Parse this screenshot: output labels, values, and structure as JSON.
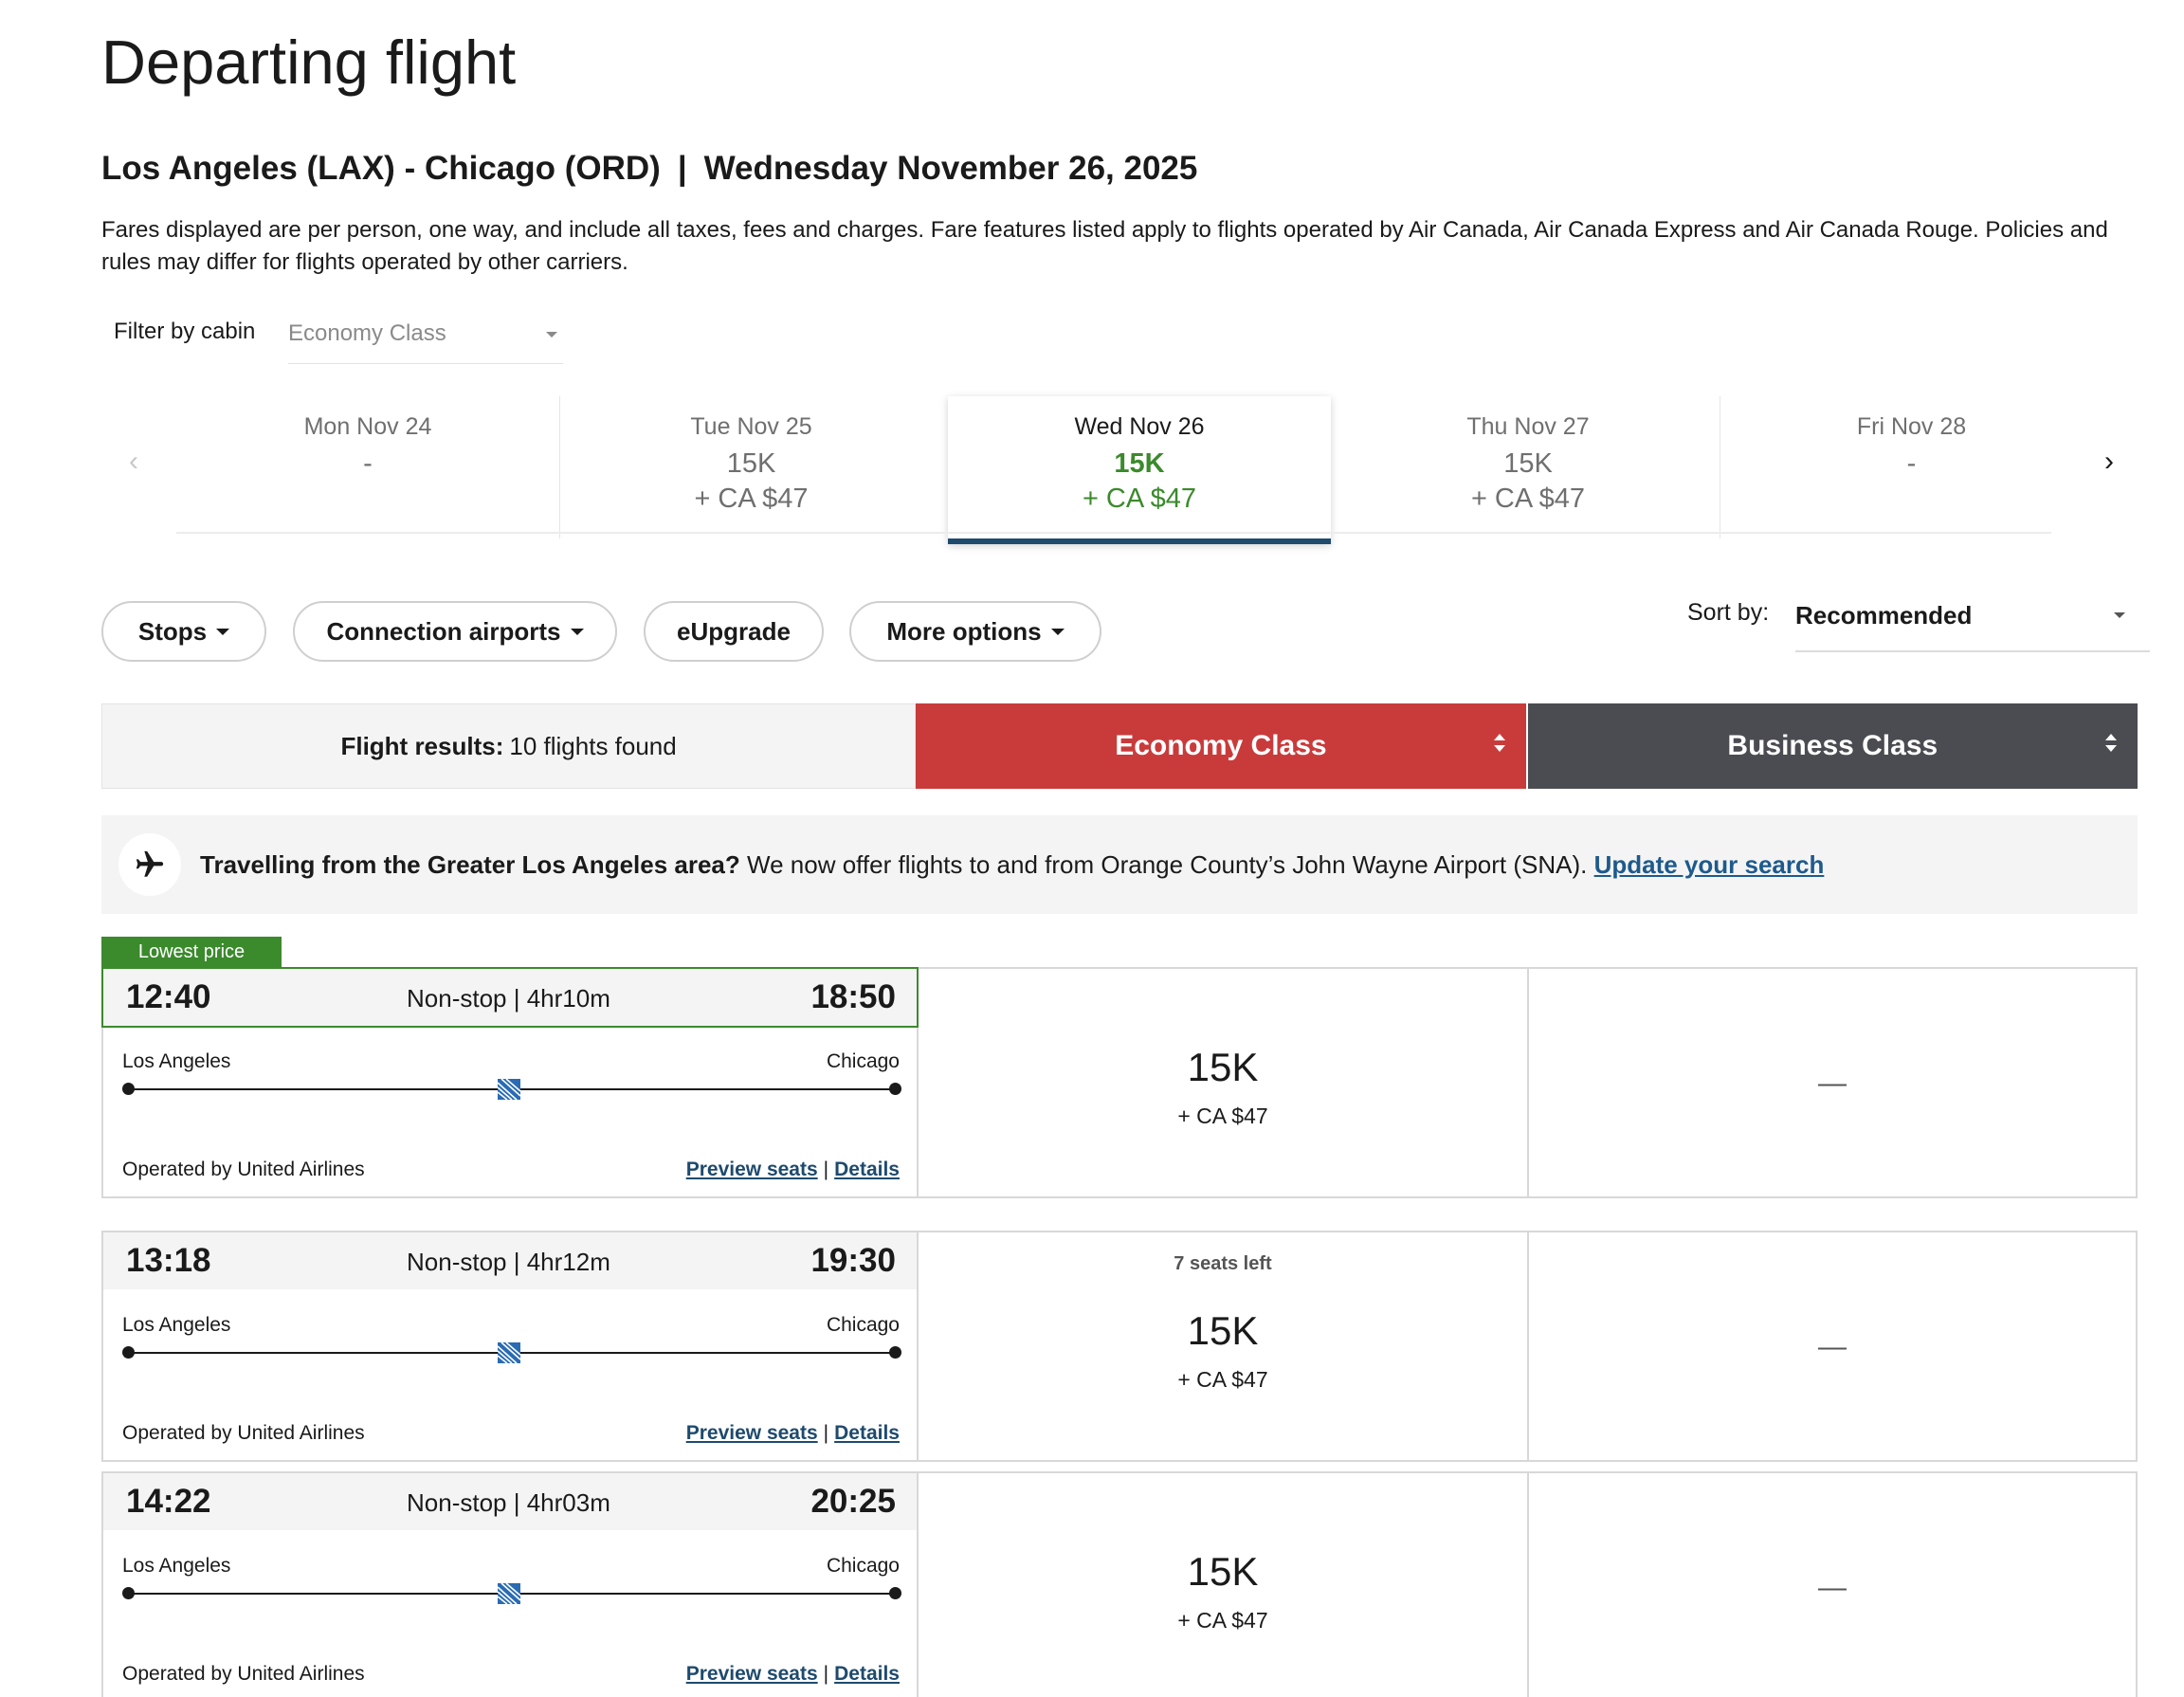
{
  "page": {
    "title": "Departing flight"
  },
  "route": {
    "od": "Los Angeles (LAX) - Chicago (ORD)",
    "separator": "|",
    "date": "Wednesday November 26, 2025"
  },
  "fare_note": "Fares displayed are per person, one way, and include all taxes, fees and charges. Fare features listed apply to flights operated by Air Canada, Air Canada Express and Air Canada Rouge. Policies and rules may differ for flights operated by other carriers.",
  "filter": {
    "label": "Filter by cabin",
    "value": "Economy Class"
  },
  "date_strip": {
    "prev_icon": "chevron-left-icon",
    "next_icon": "chevron-right-icon",
    "days": [
      {
        "label": "Mon Nov 24",
        "points": "-",
        "cash": ""
      },
      {
        "label": "Tue Nov 25",
        "points": "15K",
        "cash": "+ CA $47"
      },
      {
        "label": "Wed Nov 26",
        "points": "15K",
        "cash": "+ CA $47",
        "selected": true
      },
      {
        "label": "Thu Nov 27",
        "points": "15K",
        "cash": "+ CA $47"
      },
      {
        "label": "Fri Nov 28",
        "points": "-",
        "cash": ""
      }
    ]
  },
  "filters_bar": {
    "stops": "Stops",
    "connection_airports": "Connection airports",
    "eupgrade": "eUpgrade",
    "more_options": "More options"
  },
  "sort": {
    "label": "Sort by:",
    "value": "Recommended"
  },
  "results": {
    "label": "Flight results:",
    "count": "10 flights found",
    "economy_header": "Economy Class",
    "business_header": "Business Class"
  },
  "banner": {
    "icon": "airplane-icon",
    "bold": "Travelling from the Greater Los Angeles area?",
    "text": "We now offer flights to and from Orange County’s John Wayne Airport (SNA).",
    "link": "Update your search"
  },
  "lowest_price_tag": "Lowest price",
  "flights": [
    {
      "depart": "12:40",
      "arrive": "18:50",
      "duration": "Non-stop | 4hr10m",
      "from": "Los Angeles",
      "to": "Chicago",
      "operated": "Operated by United Airlines",
      "preview": "Preview seats",
      "details": "Details",
      "seats_left": "",
      "economy_points": "15K",
      "economy_cash": "+ CA $47",
      "business": "—"
    },
    {
      "depart": "13:18",
      "arrive": "19:30",
      "duration": "Non-stop | 4hr12m",
      "from": "Los Angeles",
      "to": "Chicago",
      "operated": "Operated by United Airlines",
      "preview": "Preview seats",
      "details": "Details",
      "seats_left": "7 seats left",
      "economy_points": "15K",
      "economy_cash": "+ CA $47",
      "business": "—"
    },
    {
      "depart": "14:22",
      "arrive": "20:25",
      "duration": "Non-stop | 4hr03m",
      "from": "Los Angeles",
      "to": "Chicago",
      "operated": "Operated by United Airlines",
      "preview": "Preview seats",
      "details": "Details",
      "seats_left": "",
      "economy_points": "15K",
      "economy_cash": "+ CA $47",
      "business": "—"
    }
  ],
  "colors": {
    "economy_red": "#c93b3b",
    "business_gray": "#4a4c51",
    "selected_green": "#3b8a2c",
    "link_blue": "#1e4a6e"
  }
}
